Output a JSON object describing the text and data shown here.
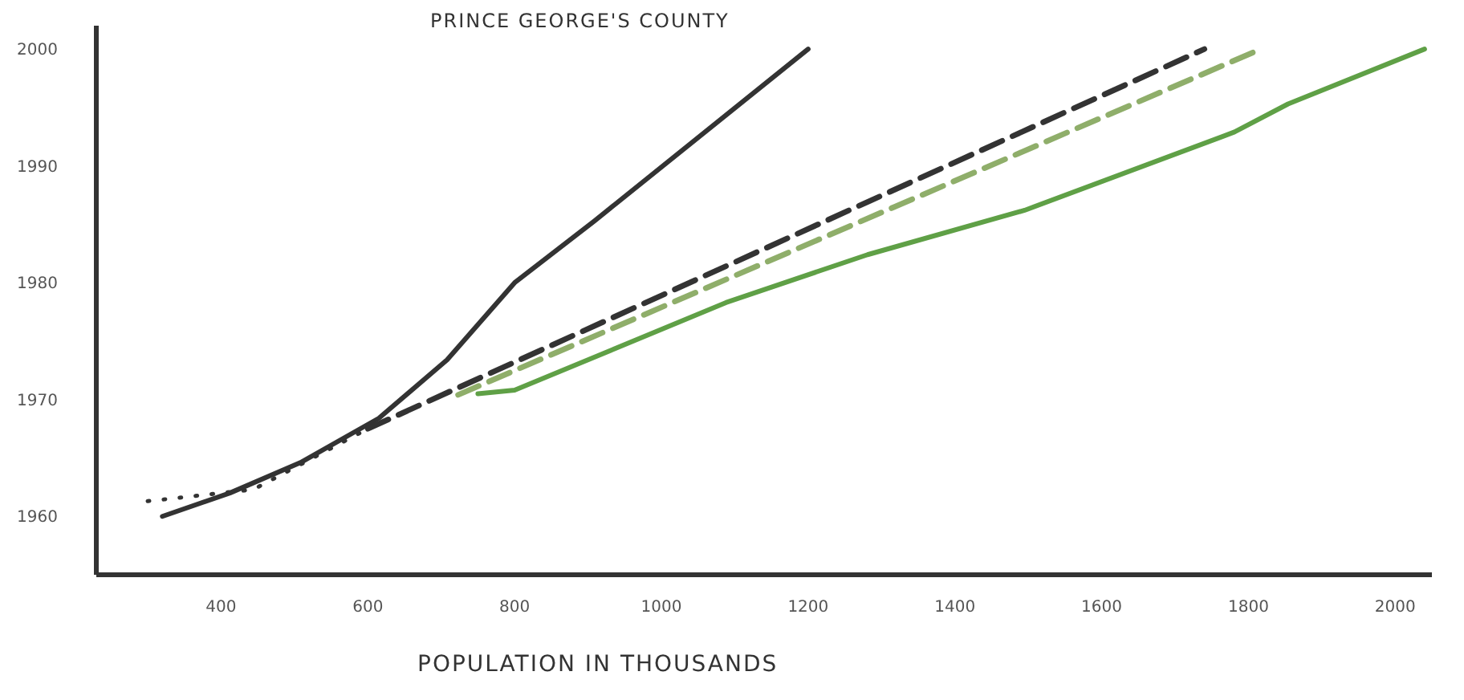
{
  "chart_data": {
    "type": "line",
    "title": "PRINCE GEORGE'S COUNTY",
    "xlabel": "POPULATION IN THOUSANDS",
    "xlim": [
      230,
      2050
    ],
    "ylim": [
      1955,
      2002
    ],
    "xticks": [
      400,
      600,
      800,
      1000,
      1200,
      1400,
      1600,
      1800,
      2000
    ],
    "yticks": [
      1960,
      1970,
      1980,
      1990,
      2000
    ],
    "grid": false,
    "marker": "none",
    "series": [
      {
        "color": "#333333",
        "line_style": "solid",
        "x": [
          320,
          412,
          508,
          615,
          708,
          800,
          909,
          1200
        ],
        "values": [
          1960,
          1962,
          1964.6,
          1968.4,
          1973.4,
          1980,
          1985.3,
          2000
        ]
      },
      {
        "color": "#333333",
        "line_style": "dotted",
        "x": [
          300,
          444,
          600
        ],
        "values": [
          1961.3,
          1962.3,
          1967.5
        ]
      },
      {
        "color": "#333333",
        "line_style": "dashed",
        "x": [
          600,
          1740
        ],
        "values": [
          1967.5,
          2000
        ]
      },
      {
        "color": "#8fae6a",
        "line_style": "dashed",
        "x": [
          723,
          1817
        ],
        "values": [
          1970.4,
          2000
        ]
      },
      {
        "color": "#5fa046",
        "line_style": "solid",
        "x": [
          750,
          800,
          1088,
          1281,
          1495,
          1781,
          1854,
          2040
        ],
        "values": [
          1970.5,
          1970.8,
          1978.3,
          1982.4,
          1986.2,
          1992.9,
          1995.3,
          2000
        ]
      }
    ]
  }
}
